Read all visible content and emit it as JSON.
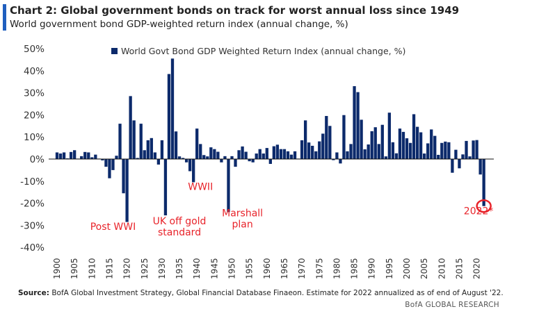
{
  "chart_data": {
    "type": "bar",
    "title": "Chart 2: Global government bonds on track for worst annual loss since 1949",
    "subtitle": "World government bond GDP-weighted return index (annual change, %)",
    "legend": {
      "label": "World Govt Bond GDP Weighted Return Index (annual change, %)",
      "placement": "top"
    },
    "xlabel": "",
    "ylabel": "",
    "ylim": [
      -40,
      50
    ],
    "yticks": [
      "-40%",
      "-30%",
      "-20%",
      "-10%",
      "0%",
      "10%",
      "20%",
      "30%",
      "40%",
      "50%"
    ],
    "ytick_values": [
      -40,
      -30,
      -20,
      -10,
      0,
      10,
      20,
      30,
      40,
      50
    ],
    "x_start": 1900,
    "x_end": 2022,
    "xtick_step": 5,
    "values": [
      3,
      2.5,
      3,
      0.3,
      3.2,
      4,
      0.2,
      1.3,
      3.2,
      3,
      0.8,
      2,
      0.2,
      -0.6,
      -3.5,
      -8.7,
      -5,
      1.5,
      16,
      -15.5,
      -28.5,
      28.5,
      17.5,
      0.5,
      16,
      4,
      8.5,
      9.5,
      3,
      -2.5,
      8.5,
      -25.5,
      38.5,
      45.5,
      12.5,
      1.2,
      0.5,
      -1.5,
      -5.5,
      -10.5,
      13.8,
      6.8,
      1.8,
      1.2,
      5.3,
      4.5,
      3.3,
      -1.5,
      1.3,
      -24,
      1.3,
      -3.5,
      4,
      5.7,
      3.3,
      -1,
      -1.5,
      2.5,
      4.5,
      2.5,
      5,
      -2.2,
      5.8,
      6.5,
      4.5,
      4.5,
      3.5,
      2,
      3.5,
      0.2,
      8.5,
      17.5,
      7.5,
      6,
      3.5,
      8,
      11.5,
      19.5,
      15,
      -0.5,
      3,
      -2,
      19.9,
      3.5,
      6.8,
      33,
      30.3,
      17.8,
      4.4,
      6.6,
      12.6,
      14.4,
      6.8,
      15.5,
      1.2,
      21,
      7.6,
      2.6,
      13.8,
      12.3,
      9.4,
      7.3,
      20.3,
      14.6,
      12.1,
      2.5,
      7.1,
      13.4,
      10.5,
      1.9,
      7.3,
      7.9,
      7.6,
      -6.2,
      4.2,
      -4.2,
      2.1,
      8.2,
      1.2,
      8.4,
      8.6,
      -7,
      -21.3
    ],
    "annotations": [
      {
        "lines": [
          "Post WWI"
        ],
        "year": 1916,
        "value": -32
      },
      {
        "lines": [
          "UK off gold",
          "standard"
        ],
        "year": 1935,
        "value": -29.5
      },
      {
        "lines": [
          "WWII"
        ],
        "year": 1941,
        "value": -14
      },
      {
        "lines": [
          "Marshall",
          "plan"
        ],
        "year": 1953,
        "value": -26
      },
      {
        "lines": [
          "2022*"
        ],
        "year": 2020.5,
        "value": -25
      }
    ],
    "highlight_year": 2022,
    "colors": {
      "bar": "#0c2a6b",
      "annotation": "#e8232a"
    }
  },
  "footer": {
    "source_label": "Source:",
    "source_text": " BofA Global Investment Strategy, Global Financial Database Finaeon. Estimate for 2022 annualized as of end of August '22.",
    "brand": "BofA GLOBAL RESEARCH"
  }
}
